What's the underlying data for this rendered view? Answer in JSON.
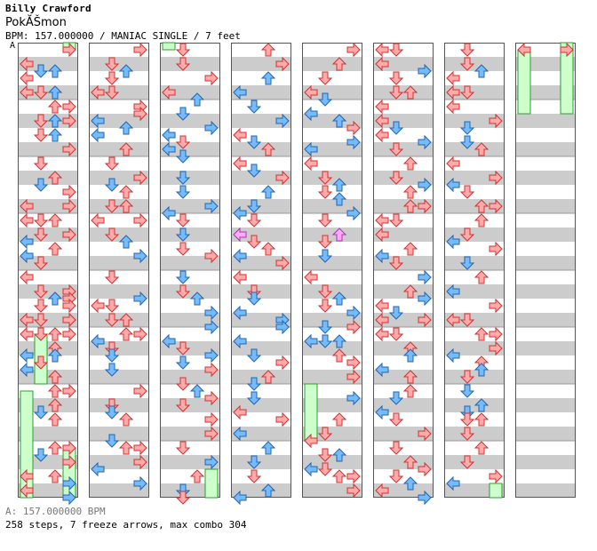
{
  "header": {
    "artist": "Billy Crawford",
    "title": "PokĂŠmon",
    "info": "BPM: 157.000000 / MANIAC SINGLE / 7 feet"
  },
  "marker": "A",
  "footer": {
    "bpm_line": "A: 157.000000 BPM",
    "stats_line": "258 steps, 7 freeze arrows, max combo 304"
  },
  "colors": {
    "quarter_note": "#ffaaaa",
    "eighth_note": "#77bbff",
    "sixteenth_note": "#ffaaff",
    "freeze": "#ccffcc",
    "stripe": "#cccccc",
    "background": "#ffffff"
  },
  "chart_data": {
    "type": "step-chart",
    "lanes": [
      "left",
      "down",
      "up",
      "right"
    ],
    "steps_total": 258,
    "freeze_arrows": 7,
    "max_combo": 304,
    "columns": 8,
    "measures_per_column": 8
  }
}
